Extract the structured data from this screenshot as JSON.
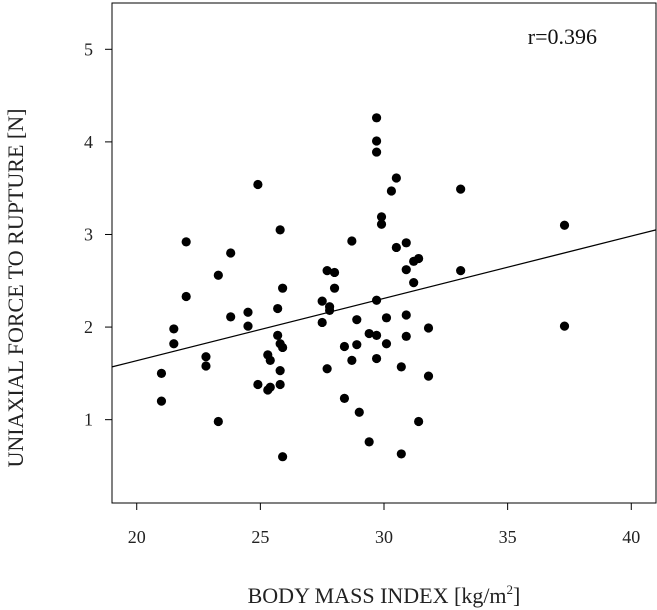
{
  "chart_data": {
    "type": "scatter",
    "title": "",
    "xlabel": "BODY MASS INDEX [kg/m",
    "xlabel_sup": "2",
    "xlabel_suffix": "]",
    "ylabel": "UNIAXIAL FORCE TO RUPTURE [N]",
    "annotation": "r=0.396",
    "annotation_position": "top-right",
    "xlim": [
      19,
      41
    ],
    "ylim": [
      0.1,
      5.5
    ],
    "x_ticks": [
      20,
      25,
      30,
      35,
      40
    ],
    "y_ticks": [
      1,
      2,
      3,
      4,
      5
    ],
    "grid": false,
    "legend": "none",
    "point_color": "#000000",
    "line_color": "#000000",
    "trendline": {
      "x": [
        19,
        41
      ],
      "y": [
        1.57,
        3.05
      ]
    },
    "points": [
      [
        21.0,
        1.5
      ],
      [
        21.0,
        1.2
      ],
      [
        21.5,
        1.98
      ],
      [
        21.5,
        1.82
      ],
      [
        22.0,
        2.92
      ],
      [
        22.0,
        2.33
      ],
      [
        22.8,
        1.68
      ],
      [
        22.8,
        1.58
      ],
      [
        23.3,
        2.56
      ],
      [
        23.3,
        0.98
      ],
      [
        23.8,
        2.8
      ],
      [
        23.8,
        2.11
      ],
      [
        24.5,
        2.16
      ],
      [
        24.5,
        2.01
      ],
      [
        24.9,
        3.54
      ],
      [
        24.9,
        1.38
      ],
      [
        25.3,
        1.7
      ],
      [
        25.3,
        1.32
      ],
      [
        25.4,
        1.64
      ],
      [
        25.4,
        1.35
      ],
      [
        25.7,
        2.2
      ],
      [
        25.7,
        1.91
      ],
      [
        25.8,
        3.05
      ],
      [
        25.8,
        1.82
      ],
      [
        25.8,
        1.53
      ],
      [
        25.8,
        1.38
      ],
      [
        25.9,
        2.42
      ],
      [
        25.9,
        1.78
      ],
      [
        25.9,
        0.6
      ],
      [
        27.5,
        2.28
      ],
      [
        27.5,
        2.05
      ],
      [
        27.7,
        2.61
      ],
      [
        27.8,
        2.22
      ],
      [
        27.8,
        2.18
      ],
      [
        27.7,
        1.55
      ],
      [
        28.0,
        2.59
      ],
      [
        28.0,
        2.42
      ],
      [
        28.4,
        1.79
      ],
      [
        28.4,
        1.23
      ],
      [
        28.7,
        2.93
      ],
      [
        28.7,
        1.64
      ],
      [
        28.9,
        2.08
      ],
      [
        28.9,
        1.81
      ],
      [
        29.0,
        1.08
      ],
      [
        29.4,
        1.93
      ],
      [
        29.4,
        0.76
      ],
      [
        29.7,
        4.26
      ],
      [
        29.7,
        4.01
      ],
      [
        29.7,
        3.89
      ],
      [
        29.7,
        2.29
      ],
      [
        29.7,
        1.91
      ],
      [
        29.7,
        1.66
      ],
      [
        29.9,
        3.19
      ],
      [
        29.9,
        3.11
      ],
      [
        30.1,
        2.1
      ],
      [
        30.1,
        1.82
      ],
      [
        30.3,
        3.47
      ],
      [
        30.5,
        3.61
      ],
      [
        30.5,
        2.86
      ],
      [
        30.7,
        1.57
      ],
      [
        30.7,
        0.63
      ],
      [
        30.9,
        2.91
      ],
      [
        30.9,
        2.62
      ],
      [
        30.9,
        2.13
      ],
      [
        30.9,
        1.9
      ],
      [
        31.2,
        2.71
      ],
      [
        31.2,
        2.48
      ],
      [
        31.4,
        2.74
      ],
      [
        31.4,
        0.98
      ],
      [
        31.8,
        1.99
      ],
      [
        31.8,
        1.47
      ],
      [
        33.1,
        3.49
      ],
      [
        33.1,
        2.61
      ],
      [
        37.3,
        3.1
      ],
      [
        37.3,
        2.01
      ]
    ]
  }
}
